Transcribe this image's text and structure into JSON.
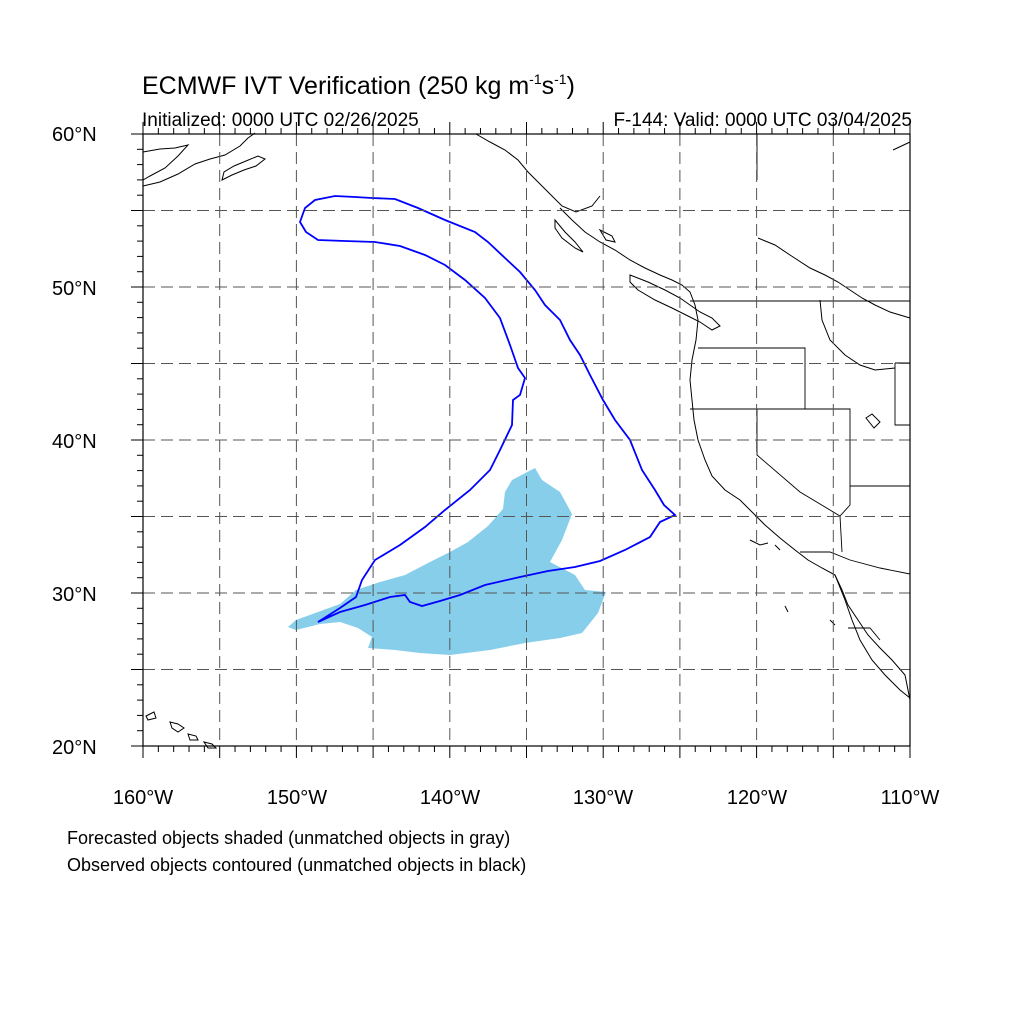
{
  "header": {
    "title_main": "ECMWF IVT Verification (250 kg m",
    "title_exp1": "-1",
    "title_mid": "s",
    "title_exp2": "-1",
    "title_end": ")",
    "initialized": "Initialized: 0000 UTC 02/26/2025",
    "valid": "F-144: Valid: 0000 UTC 03/04/2025"
  },
  "axes": {
    "lat_labels": [
      "60°N",
      "50°N",
      "40°N",
      "30°N",
      "20°N"
    ],
    "lon_labels": [
      "160°W",
      "150°W",
      "140°W",
      "130°W",
      "120°W",
      "110°W"
    ],
    "lat_range": [
      20,
      60
    ],
    "lon_range": [
      -160,
      -110
    ],
    "grid": "dashed every 5°"
  },
  "legend": {
    "line1": "Forecasted objects shaded (unmatched objects in gray)",
    "line2": "Observed objects contoured (unmatched objects in black)"
  },
  "colors": {
    "forecast_fill": "#87ceeb",
    "observed_contour": "#0000ff",
    "coastline": "#000000",
    "grid": "#555555"
  }
}
